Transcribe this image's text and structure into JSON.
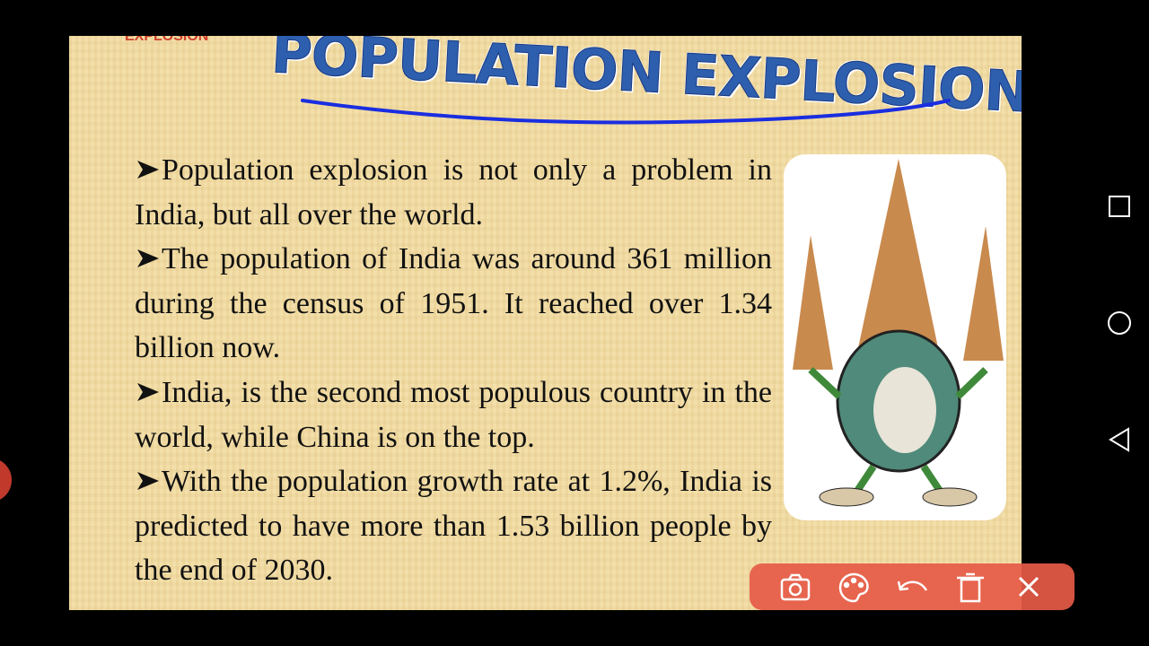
{
  "slide": {
    "logo": "EXPLOSION",
    "title": "POPULATION EXPLOSION",
    "bullets": [
      "Population explosion is not only a problem in India, but all over the world.",
      "The population of India was around 361 million during the census of 1951. It reached over 1.34 billion now.",
      "India, is the second most populous country in the world, while China is on the top.",
      "With the population growth rate at 1.2%, India is predicted to have more than 1.53 billion people by the end of 2030."
    ]
  }
}
